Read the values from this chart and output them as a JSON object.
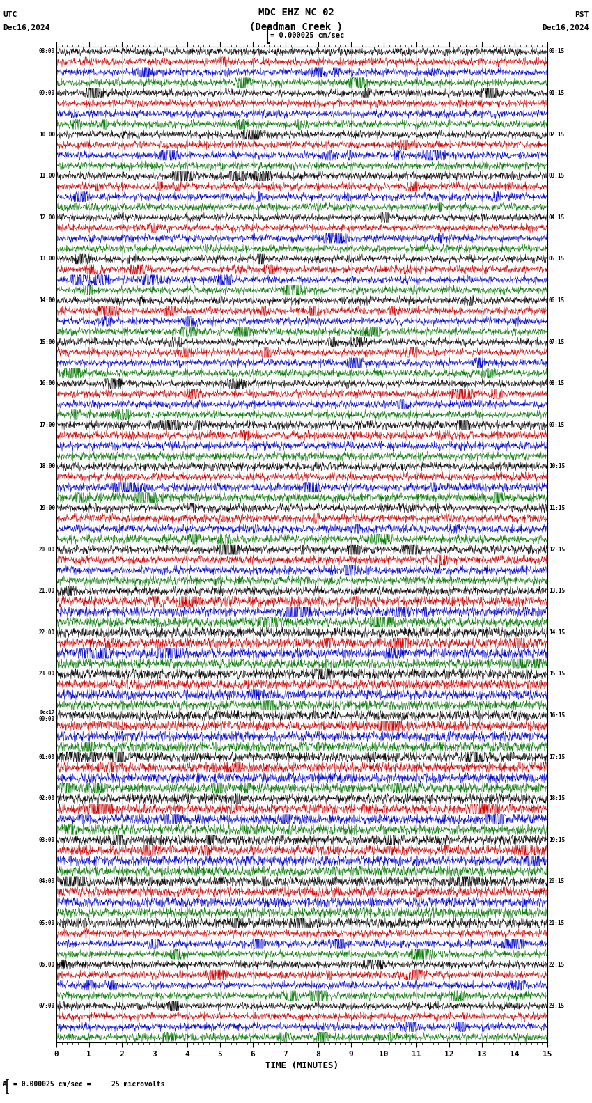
{
  "title_line1": "MDC EHZ NC 02",
  "title_line2": "(Deadman Creek )",
  "scale_label": "= 0.000025 cm/sec",
  "utc_label": "UTC",
  "pst_label": "PST",
  "date_left": "Dec16,2024",
  "date_right": "Dec16,2024",
  "xlabel": "TIME (MINUTES)",
  "bottom_label": "A  I = 0.000025 cm/sec =     25 microvolts",
  "x_ticks": [
    0,
    1,
    2,
    3,
    4,
    5,
    6,
    7,
    8,
    9,
    10,
    11,
    12,
    13,
    14,
    15
  ],
  "bg_color": "#ffffff",
  "trace_colors": [
    "#000000",
    "#cc0000",
    "#0000cc",
    "#007700"
  ],
  "row_labels_left": [
    "08:00",
    "",
    "",
    "",
    "09:00",
    "",
    "",
    "",
    "10:00",
    "",
    "",
    "",
    "11:00",
    "",
    "",
    "",
    "12:00",
    "",
    "",
    "",
    "13:00",
    "",
    "",
    "",
    "14:00",
    "",
    "",
    "",
    "15:00",
    "",
    "",
    "",
    "16:00",
    "",
    "",
    "",
    "17:00",
    "",
    "",
    "",
    "18:00",
    "",
    "",
    "",
    "19:00",
    "",
    "",
    "",
    "20:00",
    "",
    "",
    "",
    "21:00",
    "",
    "",
    "",
    "22:00",
    "",
    "",
    "",
    "23:00",
    "",
    "",
    "",
    "Dec17\n00:00",
    "",
    "",
    "",
    "01:00",
    "",
    "",
    "",
    "02:00",
    "",
    "",
    "",
    "03:00",
    "",
    "",
    "",
    "04:00",
    "",
    "",
    "",
    "05:00",
    "",
    "",
    "",
    "06:00",
    "",
    "",
    "",
    "07:00",
    "",
    "",
    ""
  ],
  "row_labels_right": [
    "00:15",
    "",
    "",
    "",
    "01:15",
    "",
    "",
    "",
    "02:15",
    "",
    "",
    "",
    "03:15",
    "",
    "",
    "",
    "04:15",
    "",
    "",
    "",
    "05:15",
    "",
    "",
    "",
    "06:15",
    "",
    "",
    "",
    "07:15",
    "",
    "",
    "",
    "08:15",
    "",
    "",
    "",
    "09:15",
    "",
    "",
    "",
    "10:15",
    "",
    "",
    "",
    "11:15",
    "",
    "",
    "",
    "12:15",
    "",
    "",
    "",
    "13:15",
    "",
    "",
    "",
    "14:15",
    "",
    "",
    "",
    "15:15",
    "",
    "",
    "",
    "16:15",
    "",
    "",
    "",
    "17:15",
    "",
    "",
    "",
    "18:15",
    "",
    "",
    "",
    "19:15",
    "",
    "",
    "",
    "20:15",
    "",
    "",
    "",
    "21:15",
    "",
    "",
    "",
    "22:15",
    "",
    "",
    "",
    "23:15",
    "",
    "",
    ""
  ],
  "num_rows": 96,
  "xmin": 0,
  "xmax": 15,
  "figsize": [
    8.5,
    15.84
  ],
  "dpi": 100
}
